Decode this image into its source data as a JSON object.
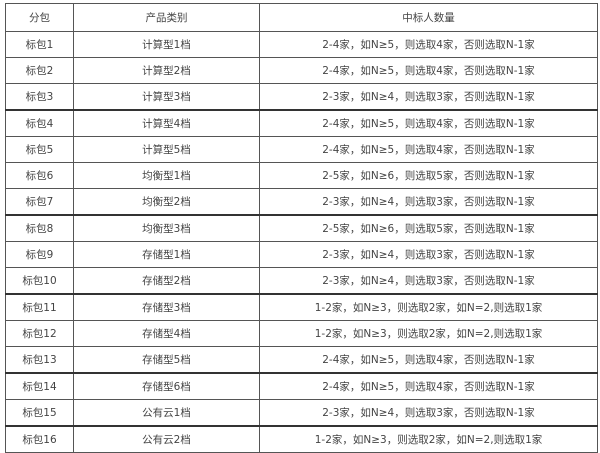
{
  "table": {
    "headers": [
      "分包",
      "产品类别",
      "中标人数量"
    ],
    "rows": [
      [
        "标包1",
        "计算型1档",
        "2-4家，如N≥5，则选取4家，否则选取N-1家"
      ],
      [
        "标包2",
        "计算型2档",
        "2-4家，如N≥5，则选取4家，否则选取N-1家"
      ],
      [
        "标包3",
        "计算型3档",
        "2-3家，如N≥4，则选取3家，否则选取N-1家"
      ],
      [
        "标包4",
        "计算型4档",
        "2-4家，如N≥5，则选取4家，否则选取N-1家"
      ],
      [
        "标包5",
        "计算型5档",
        "2-4家，如N≥5，则选取4家，否则选取N-1家"
      ],
      [
        "标包6",
        "均衡型1档",
        "2-5家，如N≥6，则选取5家，否则选取N-1家"
      ],
      [
        "标包7",
        "均衡型2档",
        "2-3家，如N≥4，则选取3家，否则选取N-1家"
      ],
      [
        "标包8",
        "均衡型3档",
        "2-5家，如N≥6，则选取5家，否则选取N-1家"
      ],
      [
        "标包9",
        "存储型1档",
        "2-3家，如N≥4，则选取3家，否则选取N-1家"
      ],
      [
        "标包10",
        "存储型2档",
        "2-3家，如N≥4，则选取3家，否则选取N-1家"
      ],
      [
        "标包11",
        "存储型3档",
        "1-2家，如N≥3，则选取2家，如N=2,则选取1家"
      ],
      [
        "标包12",
        "存储型4档",
        "1-2家，如N≥3，则选取2家，如N=2,则选取1家"
      ],
      [
        "标包13",
        "存储型5档",
        "2-4家，如N≥5，则选取4家，否则选取N-1家"
      ],
      [
        "标包14",
        "存储型6档",
        "2-4家，如N≥5，则选取4家，否则选取N-1家"
      ],
      [
        "标包15",
        "公有云1档",
        "2-3家，如N≥4，则选取3家，否则选取N-1家"
      ],
      [
        "标包16",
        "公有云2档",
        "1-2家，如N≥3，则选取2家，如N=2,则选取1家"
      ]
    ]
  }
}
